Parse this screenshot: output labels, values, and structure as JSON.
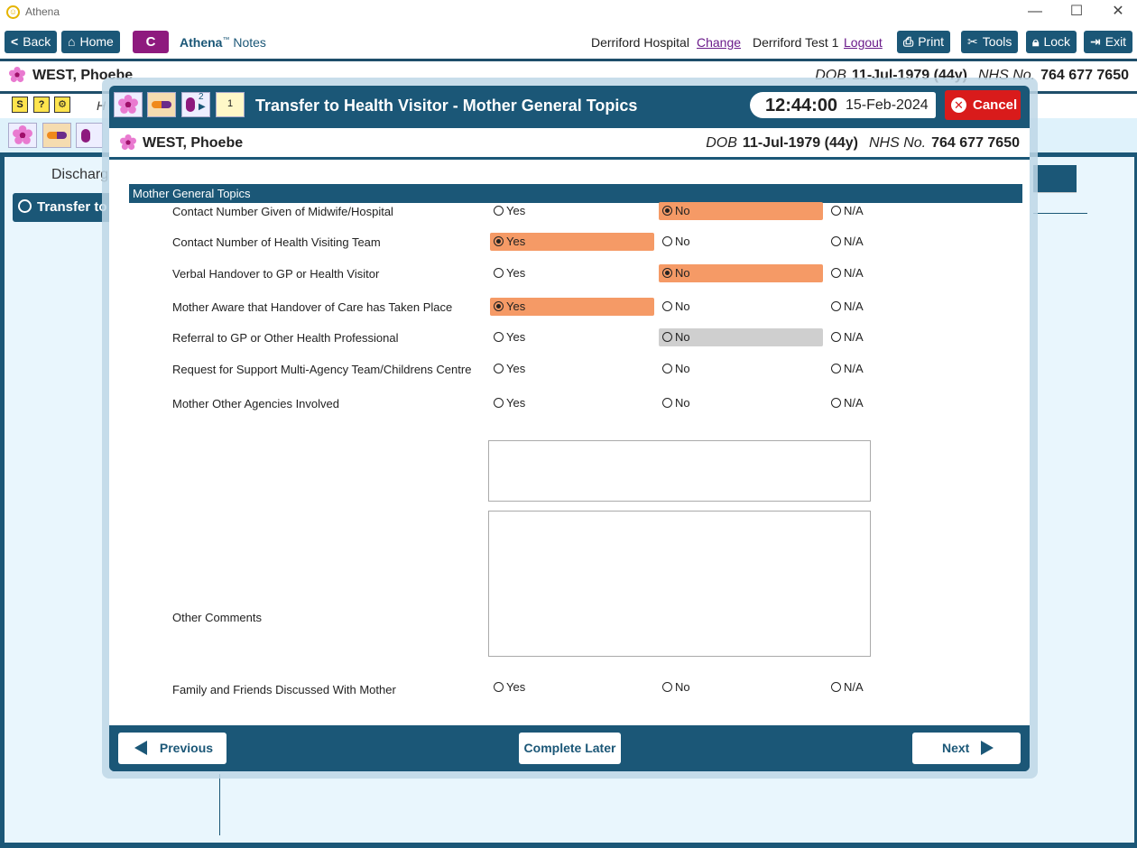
{
  "window": {
    "title": "Athena",
    "minimize": "—",
    "maximize": "☐",
    "close": "✕"
  },
  "toolbar": {
    "back": "Back",
    "home": "Home",
    "c_label": "C",
    "app_name": "Athena",
    "app_tm": "™",
    "app_sub": "Notes",
    "hospital": "Derriford Hospital",
    "change": "Change",
    "user": "Derriford Test 1",
    "logout": "Logout",
    "print": "Print",
    "tools": "Tools",
    "lock": "Lock",
    "exit": "Exit"
  },
  "patient": {
    "name": "WEST, Phoebe",
    "dob_label": "DOB",
    "dob": "11-Jul-1979 (44y)",
    "nhs_label": "NHS No.",
    "nhs": "764 677 7650"
  },
  "background": {
    "discharge": "Discharg",
    "transfer": "Transfer to",
    "h": "H"
  },
  "modal": {
    "title": "Transfer to Health Visitor - Mother General Topics",
    "time": "12:44:00",
    "date": "15-Feb-2024",
    "cancel": "Cancel",
    "badge_count": "2",
    "note_count": "1"
  },
  "section": {
    "title": "Mother General Topics",
    "questions": [
      {
        "label": "Contact Number Given of Midwife/Hospital",
        "selected": "No"
      },
      {
        "label": "Contact Number of Health Visiting Team",
        "selected": "Yes"
      },
      {
        "label": "Verbal Handover to GP or Health Visitor",
        "selected": "No"
      },
      {
        "label": "Mother Aware that Handover of Care has Taken Place",
        "selected": "Yes"
      },
      {
        "label": "Referral to GP or Other Health Professional",
        "selected": "",
        "hover": "No"
      },
      {
        "label": "Request for Support Multi-Agency Team/Childrens Centre",
        "selected": ""
      },
      {
        "label": "Mother Other Agencies Involved",
        "selected": ""
      }
    ],
    "other_comments": "Other Comments",
    "family": {
      "label": "Family and Friends Discussed With Mother",
      "selected": ""
    },
    "opt_yes": "Yes",
    "opt_no": "No",
    "opt_na": "N/A"
  },
  "footer": {
    "previous": "Previous",
    "complete_later": "Complete Later",
    "next": "Next"
  },
  "colors": {
    "accent": "#1b5777",
    "selected": "#f59a66",
    "cancel": "#d91b1b",
    "c_button": "#8e1a7e"
  }
}
